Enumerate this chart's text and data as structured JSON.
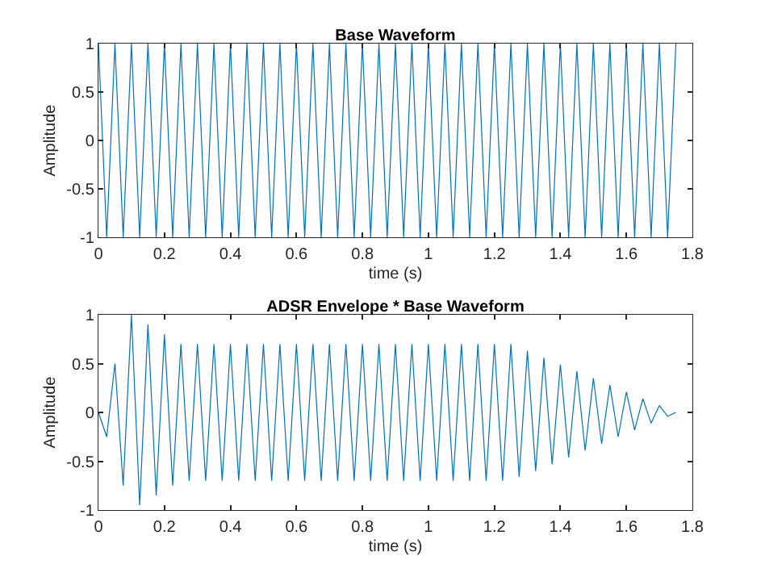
{
  "chart_data": [
    {
      "type": "line",
      "title": "Base Waveform",
      "xlabel": "time (s)",
      "ylabel": "Amplitude",
      "xlim": [
        0,
        1.8
      ],
      "xticks": [
        0,
        0.2,
        0.4,
        0.6,
        0.8,
        1,
        1.2,
        1.4,
        1.6,
        1.8
      ],
      "ylim": [
        -1,
        1
      ],
      "yticks": [
        -1,
        -0.5,
        0,
        0.5,
        1
      ],
      "x": [
        0,
        0.025,
        0.05,
        0.075,
        0.1,
        0.125,
        0.15,
        0.175,
        0.2,
        0.225,
        0.25,
        0.275,
        0.3,
        0.325,
        0.35,
        0.375,
        0.4,
        0.425,
        0.45,
        0.475,
        0.5,
        0.525,
        0.55,
        0.575,
        0.6,
        0.625,
        0.65,
        0.675,
        0.7,
        0.725,
        0.75,
        0.775,
        0.8,
        0.825,
        0.85,
        0.875,
        0.9,
        0.925,
        0.95,
        0.975,
        1,
        1.025,
        1.05,
        1.075,
        1.1,
        1.125,
        1.15,
        1.175,
        1.2,
        1.225,
        1.25,
        1.275,
        1.3,
        1.325,
        1.35,
        1.375,
        1.4,
        1.425,
        1.45,
        1.475,
        1.5,
        1.525,
        1.55,
        1.575,
        1.6,
        1.625,
        1.65,
        1.675,
        1.7,
        1.725,
        1.75
      ],
      "series": [
        {
          "color": "#0072bd",
          "values": [
            1,
            -1,
            1,
            -1,
            1,
            -1,
            1,
            -1,
            1,
            -1,
            1,
            -1,
            1,
            -1,
            1,
            -1,
            1,
            -1,
            1,
            -1,
            1,
            -1,
            1,
            -1,
            1,
            -1,
            1,
            -1,
            1,
            -1,
            1,
            -1,
            1,
            -1,
            1,
            -1,
            1,
            -1,
            1,
            -1,
            1,
            -1,
            1,
            -1,
            1,
            -1,
            1,
            -1,
            1,
            -1,
            1,
            -1,
            1,
            -1,
            1,
            -1,
            1,
            -1,
            1,
            -1,
            1,
            -1,
            1,
            -1,
            1,
            -1,
            1,
            -1,
            1,
            -1,
            1
          ]
        }
      ]
    },
    {
      "type": "line",
      "title": "ADSR Envelope * Base Waveform",
      "xlabel": "time (s)",
      "ylabel": "Amplitude",
      "xlim": [
        0,
        1.8
      ],
      "xticks": [
        0,
        0.2,
        0.4,
        0.6,
        0.8,
        1,
        1.2,
        1.4,
        1.6,
        1.8
      ],
      "ylim": [
        -1,
        1
      ],
      "yticks": [
        -1,
        -0.5,
        0,
        0.5,
        1
      ],
      "x": [
        0,
        0.025,
        0.05,
        0.075,
        0.1,
        0.125,
        0.15,
        0.175,
        0.2,
        0.225,
        0.25,
        0.275,
        0.3,
        0.325,
        0.35,
        0.375,
        0.4,
        0.425,
        0.45,
        0.475,
        0.5,
        0.525,
        0.55,
        0.575,
        0.6,
        0.625,
        0.65,
        0.675,
        0.7,
        0.725,
        0.75,
        0.775,
        0.8,
        0.825,
        0.85,
        0.875,
        0.9,
        0.925,
        0.95,
        0.975,
        1,
        1.025,
        1.05,
        1.075,
        1.1,
        1.125,
        1.15,
        1.175,
        1.2,
        1.225,
        1.25,
        1.275,
        1.3,
        1.325,
        1.35,
        1.375,
        1.4,
        1.425,
        1.45,
        1.475,
        1.5,
        1.525,
        1.55,
        1.575,
        1.6,
        1.625,
        1.65,
        1.675,
        1.7,
        1.725,
        1.75
      ],
      "series": [
        {
          "color": "#0072bd",
          "values": [
            0,
            -0.25,
            0.5,
            -0.75,
            1,
            -0.95,
            0.9,
            -0.85,
            0.8,
            -0.75,
            0.7,
            -0.7,
            0.7,
            -0.7,
            0.7,
            -0.7,
            0.7,
            -0.7,
            0.7,
            -0.7,
            0.7,
            -0.7,
            0.7,
            -0.7,
            0.7,
            -0.7,
            0.7,
            -0.7,
            0.7,
            -0.7,
            0.7,
            -0.7,
            0.7,
            -0.7,
            0.7,
            -0.7,
            0.7,
            -0.7,
            0.7,
            -0.7,
            0.7,
            -0.7,
            0.7,
            -0.7,
            0.7,
            -0.7,
            0.7,
            -0.7,
            0.7,
            -0.7,
            0.7,
            -0.66,
            0.63,
            -0.6,
            0.56,
            -0.53,
            0.49,
            -0.46,
            0.42,
            -0.39,
            0.35,
            -0.32,
            0.28,
            -0.25,
            0.21,
            -0.18,
            0.14,
            -0.11,
            0.07,
            -0.04,
            0
          ]
        }
      ]
    }
  ]
}
